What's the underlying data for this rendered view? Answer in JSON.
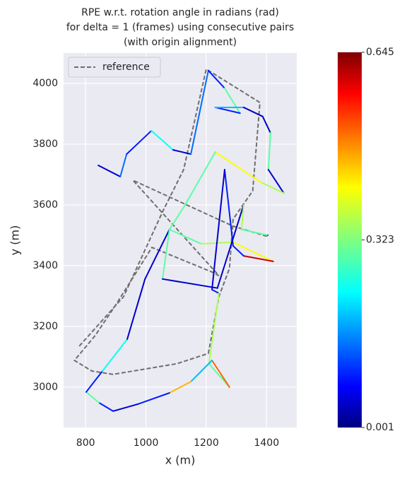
{
  "chart_data": {
    "type": "trajectory",
    "title": [
      "RPE w.r.t. rotation angle in radians (rad)",
      "for delta = 1 (frames) using consecutive pairs",
      "(with origin alignment)"
    ],
    "xlabel": "x (m)",
    "ylabel": "y (m)",
    "xlim": [
      727,
      1500
    ],
    "ylim": [
      2867,
      4100
    ],
    "xticks": [
      800,
      1000,
      1200,
      1400
    ],
    "yticks": [
      3000,
      3200,
      3400,
      3600,
      3800,
      4000
    ],
    "grid": true,
    "legend": "upper left",
    "series": [
      {
        "name": "reference",
        "color": "#6e6e6e",
        "style": "dashed",
        "x": [
          779,
          926,
          1055,
          1125,
          1200,
          1378,
          1354,
          1289,
          1277,
          1242,
          1207,
          1102,
          891,
          821,
          763,
          832,
          902,
          1020,
          1219,
          1242,
          957,
          1289,
          1406
        ],
        "values": [
          3135,
          3298,
          3577,
          3716,
          4047,
          3937,
          3646,
          3553,
          3391,
          3298,
          3111,
          3077,
          3042,
          3053,
          3088,
          3170,
          3274,
          3460,
          3379,
          3367,
          3681,
          3530,
          3495
        ]
      },
      {
        "colormap": "jet",
        "x": [
          842,
          915,
          936,
          1018,
          1090,
          1149,
          1207,
          1261,
          1312,
          1230,
          1324,
          1387,
          1413,
          1406,
          1457,
          1382,
          1230,
          1130,
          1078,
          1183,
          1289,
          1422,
          1324,
          1289,
          1261,
          1219,
          1242,
          1209,
          1277,
          1219,
          1149,
          1078,
          973,
          891,
          844,
          802,
          856,
          938,
          997,
          1078,
          1055,
          1237,
          1324,
          1317,
          1404
        ],
        "values": [
          3730,
          3693,
          3767,
          3844,
          3781,
          3767,
          4042,
          3984,
          3902,
          3921,
          3921,
          3891,
          3837,
          3716,
          3639,
          3674,
          3774,
          3600,
          3519,
          3472,
          3477,
          3414,
          3432,
          3465,
          3716,
          3321,
          3309,
          3077,
          3000,
          3088,
          3018,
          2981,
          2944,
          2921,
          2949,
          2984,
          3053,
          3158,
          3356,
          3519,
          3356,
          3326,
          3600,
          3519,
          3500
        ],
        "c": [
          0.05,
          0.15,
          0.1,
          0.25,
          0.05,
          0.15,
          0.1,
          0.3,
          0.1,
          0.2,
          0.05,
          0.05,
          0.3,
          0.05,
          0.35,
          0.4,
          0.3,
          0.3,
          0.3,
          0.35,
          0.4,
          0.6,
          0.1,
          0.1,
          0.05,
          0.1,
          0.35,
          0.3,
          0.5,
          0.2,
          0.45,
          0.1,
          0.05,
          0.1,
          0.3,
          0.1,
          0.25,
          0.05,
          0.05,
          0.3,
          0.05,
          0.05,
          0.35,
          0.3,
          0.1
        ]
      }
    ],
    "colorbar": {
      "lim": [
        0.001,
        0.645
      ],
      "ticks": [
        0.001,
        0.323,
        0.645
      ]
    }
  }
}
